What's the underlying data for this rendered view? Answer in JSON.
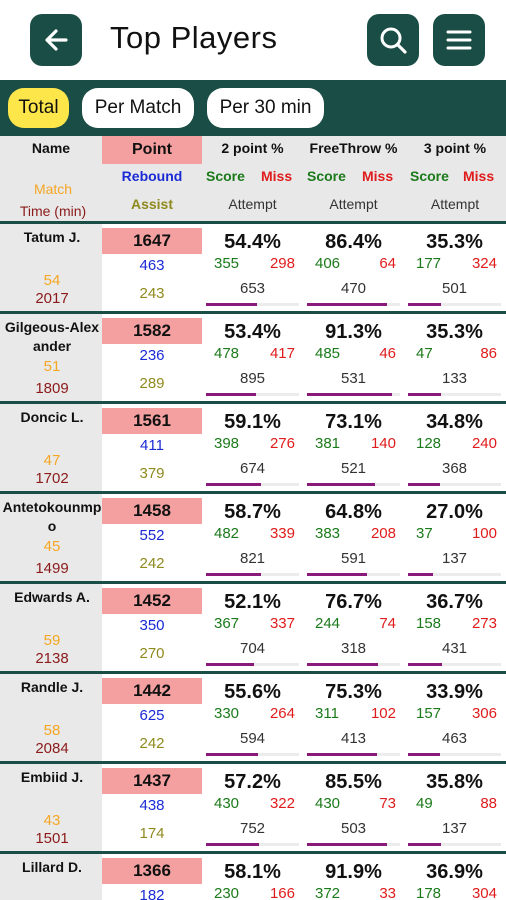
{
  "header": {
    "title": "Top Players",
    "back_icon": "arrow-left-icon",
    "search_icon": "search-icon",
    "menu_icon": "hamburger-menu-icon"
  },
  "tabs": [
    {
      "label": "Total",
      "active": true
    },
    {
      "label": "Per Match",
      "active": false
    },
    {
      "label": "Per 30 min",
      "active": false
    }
  ],
  "columns": {
    "name": "Name",
    "match": "Match",
    "time": "Time (min)",
    "point": "Point",
    "rebound": "Rebound",
    "assist": "Assist",
    "two_point": "2 point %",
    "free_throw": "FreeThrow %",
    "three_point": "3 point %",
    "score": "Score",
    "miss": "Miss",
    "attempt": "Attempt"
  },
  "colors": {
    "brand": "#1a4d45",
    "active_tab": "#fde64a",
    "point_bg": "#f5a0a0",
    "match": "#f5a623",
    "time": "#8b1a1a",
    "rebound": "#1a2bd6",
    "assist": "#8f8a1e",
    "score": "#1a7a1a",
    "miss": "#e01b1b",
    "progress": "#8a1a7a"
  },
  "players": [
    {
      "name": "Tatum J.",
      "match": "54",
      "time": "2017",
      "point": "1647",
      "rebound": "463",
      "assist": "243",
      "two": {
        "pct": "54.4%",
        "score": "355",
        "miss": "298",
        "attempt": "653",
        "bar": 0.544
      },
      "ft": {
        "pct": "86.4%",
        "score": "406",
        "miss": "64",
        "attempt": "470",
        "bar": 0.864
      },
      "three": {
        "pct": "35.3%",
        "score": "177",
        "miss": "324",
        "attempt": "501",
        "bar": 0.353
      }
    },
    {
      "name": "Gilgeous-Alexander",
      "match": "51",
      "time": "1809",
      "point": "1582",
      "rebound": "236",
      "assist": "289",
      "two": {
        "pct": "53.4%",
        "score": "478",
        "miss": "417",
        "attempt": "895",
        "bar": 0.534
      },
      "ft": {
        "pct": "91.3%",
        "score": "485",
        "miss": "46",
        "attempt": "531",
        "bar": 0.913
      },
      "three": {
        "pct": "35.3%",
        "score": "47",
        "miss": "86",
        "attempt": "133",
        "bar": 0.353
      }
    },
    {
      "name": "Doncic L.",
      "match": "47",
      "time": "1702",
      "point": "1561",
      "rebound": "411",
      "assist": "379",
      "two": {
        "pct": "59.1%",
        "score": "398",
        "miss": "276",
        "attempt": "674",
        "bar": 0.591
      },
      "ft": {
        "pct": "73.1%",
        "score": "381",
        "miss": "140",
        "attempt": "521",
        "bar": 0.731
      },
      "three": {
        "pct": "34.8%",
        "score": "128",
        "miss": "240",
        "attempt": "368",
        "bar": 0.348
      }
    },
    {
      "name": "Antetokounmpo",
      "match": "45",
      "time": "1499",
      "point": "1458",
      "rebound": "552",
      "assist": "242",
      "two": {
        "pct": "58.7%",
        "score": "482",
        "miss": "339",
        "attempt": "821",
        "bar": 0.587
      },
      "ft": {
        "pct": "64.8%",
        "score": "383",
        "miss": "208",
        "attempt": "591",
        "bar": 0.648
      },
      "three": {
        "pct": "27.0%",
        "score": "37",
        "miss": "100",
        "attempt": "137",
        "bar": 0.27
      }
    },
    {
      "name": "Edwards A.",
      "match": "59",
      "time": "2138",
      "point": "1452",
      "rebound": "350",
      "assist": "270",
      "two": {
        "pct": "52.1%",
        "score": "367",
        "miss": "337",
        "attempt": "704",
        "bar": 0.521
      },
      "ft": {
        "pct": "76.7%",
        "score": "244",
        "miss": "74",
        "attempt": "318",
        "bar": 0.767
      },
      "three": {
        "pct": "36.7%",
        "score": "158",
        "miss": "273",
        "attempt": "431",
        "bar": 0.367
      }
    },
    {
      "name": "Randle J.",
      "match": "58",
      "time": "2084",
      "point": "1442",
      "rebound": "625",
      "assist": "242",
      "two": {
        "pct": "55.6%",
        "score": "330",
        "miss": "264",
        "attempt": "594",
        "bar": 0.556
      },
      "ft": {
        "pct": "75.3%",
        "score": "311",
        "miss": "102",
        "attempt": "413",
        "bar": 0.753
      },
      "three": {
        "pct": "33.9%",
        "score": "157",
        "miss": "306",
        "attempt": "463",
        "bar": 0.339
      }
    },
    {
      "name": "Embiid J.",
      "match": "43",
      "time": "1501",
      "point": "1437",
      "rebound": "438",
      "assist": "174",
      "two": {
        "pct": "57.2%",
        "score": "430",
        "miss": "322",
        "attempt": "752",
        "bar": 0.572
      },
      "ft": {
        "pct": "85.5%",
        "score": "430",
        "miss": "73",
        "attempt": "503",
        "bar": 0.855
      },
      "three": {
        "pct": "35.8%",
        "score": "49",
        "miss": "88",
        "attempt": "137",
        "bar": 0.358
      }
    },
    {
      "name": "Lillard D.",
      "match": "",
      "time": "",
      "point": "1366",
      "rebound": "182",
      "assist": "",
      "two": {
        "pct": "58.1%",
        "score": "230",
        "miss": "166",
        "attempt": "",
        "bar": 0.581
      },
      "ft": {
        "pct": "91.9%",
        "score": "372",
        "miss": "33",
        "attempt": "",
        "bar": 0.919
      },
      "three": {
        "pct": "36.9%",
        "score": "178",
        "miss": "304",
        "attempt": "",
        "bar": 0.369
      }
    }
  ]
}
